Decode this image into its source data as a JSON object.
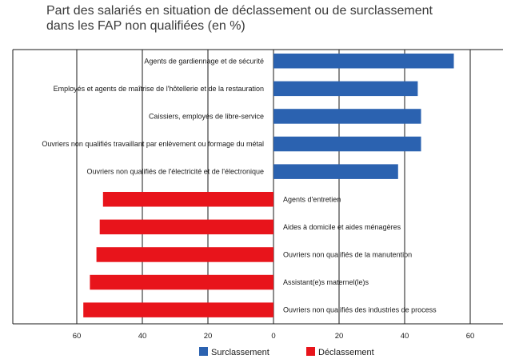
{
  "title_line1": "Part des salariés en situation de déclassement ou de surclassement",
  "title_line2": "dans les FAP non qualifiées (en %)",
  "colors": {
    "surclassement": "#2b62b0",
    "declassement": "#e8141b",
    "grid": "#1a1a1a"
  },
  "chart_data": {
    "type": "bar",
    "orientation": "horizontal",
    "title": "Part des salariés en situation de déclassement ou de surclassement dans les FAP non qualifiées (en %)",
    "x_ticks": [
      "60",
      "40",
      "20",
      "0",
      "20",
      "40",
      "60"
    ],
    "xlim": [
      -80,
      73
    ],
    "grid": true,
    "legend_position": "bottom",
    "series": [
      {
        "name": "Surclassement",
        "color": "#2b62b0",
        "direction": "right",
        "items": [
          {
            "label": "Agents de gardiennage et de sécurité",
            "value": 55
          },
          {
            "label": "Employés et agents de maîtrise de l'hôtellerie et de la restauration",
            "value": 44
          },
          {
            "label": "Caissiers, employés de libre-service",
            "value": 45
          },
          {
            "label": "Ouvriers non qualifiés travaillant par enlèvement ou formage du métal",
            "value": 45
          },
          {
            "label": "Ouvriers non qualifiés de l'électricité et de l'électronique",
            "value": 38
          }
        ]
      },
      {
        "name": "Déclassement",
        "color": "#e8141b",
        "direction": "left",
        "items": [
          {
            "label": "Agents d'entretien",
            "value": 52
          },
          {
            "label": "Aides à domicile et aides ménagères",
            "value": 53
          },
          {
            "label": "Ouvriers non qualifiés de la manutention",
            "value": 54
          },
          {
            "label": "Assistant(e)s maternel(le)s",
            "value": 56
          },
          {
            "label": "Ouvriers non qualifiés des industries de process",
            "value": 58
          }
        ]
      }
    ]
  }
}
